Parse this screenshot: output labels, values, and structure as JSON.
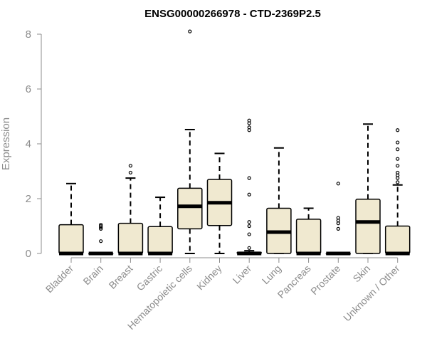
{
  "colors": {
    "box_fill": "#f0e9d0",
    "axis": "#8c8c8c",
    "stroke": "#000000"
  },
  "chart_data": {
    "type": "boxplot",
    "title": "ENSG00000266978 - CTD-2369P2.5",
    "ylabel": "Expression",
    "xlabel": "",
    "ylim": [
      0,
      8
    ],
    "yticks": [
      0,
      2,
      4,
      6,
      8
    ],
    "grid": false,
    "categories": [
      "Bladder",
      "Brain",
      "Breast",
      "Gastric",
      "Hematopoietic cells",
      "Kidney",
      "Liver",
      "Lung",
      "Pancreas",
      "Prostate",
      "Skin",
      "Unknown / Other"
    ],
    "boxes": [
      {
        "q1": 0,
        "median": 0,
        "q3": 1.05,
        "whisker_low": 0,
        "whisker_high": 2.55,
        "outliers": []
      },
      {
        "q1": 0,
        "median": 0,
        "q3": 0,
        "whisker_low": 0,
        "whisker_high": 0,
        "outliers": [
          0.45,
          0.9,
          0.95,
          1.0,
          1.05
        ]
      },
      {
        "q1": 0,
        "median": 0,
        "q3": 1.1,
        "whisker_low": 0,
        "whisker_high": 2.75,
        "outliers": [
          2.95,
          3.2
        ]
      },
      {
        "q1": 0,
        "median": 0,
        "q3": 0.98,
        "whisker_low": 0,
        "whisker_high": 2.05,
        "outliers": []
      },
      {
        "q1": 0.9,
        "median": 1.72,
        "q3": 2.38,
        "whisker_low": 0,
        "whisker_high": 4.52,
        "outliers": [
          8.1
        ]
      },
      {
        "q1": 1.02,
        "median": 1.85,
        "q3": 2.7,
        "whisker_low": 0,
        "whisker_high": 3.65,
        "outliers": []
      },
      {
        "q1": 0,
        "median": 0,
        "q3": 0.05,
        "whisker_low": 0,
        "whisker_high": 0.1,
        "outliers": [
          0.2,
          0.7,
          1.0,
          1.15,
          2.15,
          2.75,
          4.5,
          4.6,
          4.75,
          4.85
        ]
      },
      {
        "q1": 0,
        "median": 0.78,
        "q3": 1.65,
        "whisker_low": 0,
        "whisker_high": 3.85,
        "outliers": []
      },
      {
        "q1": 0,
        "median": 0,
        "q3": 1.25,
        "whisker_low": 0,
        "whisker_high": 1.65,
        "outliers": []
      },
      {
        "q1": 0,
        "median": 0,
        "q3": 0,
        "whisker_low": 0,
        "whisker_high": 0,
        "outliers": [
          0.9,
          1.1,
          1.2,
          1.3,
          2.55
        ]
      },
      {
        "q1": 0,
        "median": 1.15,
        "q3": 1.98,
        "whisker_low": 0,
        "whisker_high": 4.72,
        "outliers": []
      },
      {
        "q1": 0,
        "median": 0,
        "q3": 1.0,
        "whisker_low": 0,
        "whisker_high": 2.5,
        "outliers": [
          2.6,
          2.75,
          2.85,
          2.95,
          3.2,
          3.45,
          3.8,
          4.05,
          4.5
        ]
      }
    ]
  }
}
